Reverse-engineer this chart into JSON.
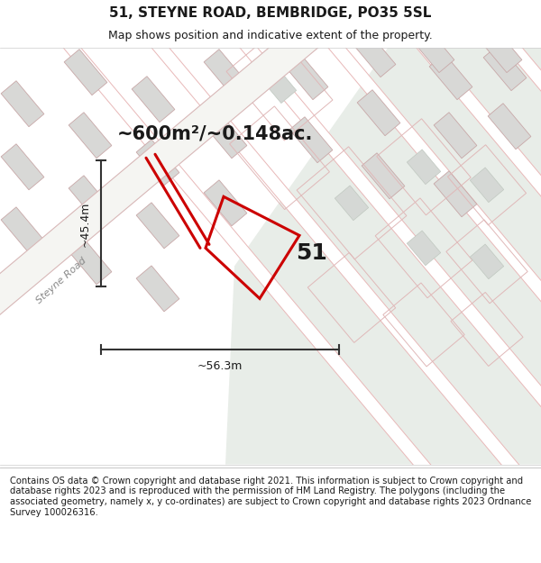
{
  "title": "51, STEYNE ROAD, BEMBRIDGE, PO35 5SL",
  "subtitle": "Map shows position and indicative extent of the property.",
  "area_label": "~600m²/~0.148ac.",
  "dim_width": "~56.3m",
  "dim_height": "~45.4m",
  "road_label": "Steyne Road",
  "plot_number": "51",
  "footer": "Contains OS data © Crown copyright and database right 2021. This information is subject to Crown copyright and database rights 2023 and is reproduced with the permission of HM Land Registry. The polygons (including the associated geometry, namely x, y co-ordinates) are subject to Crown copyright and database rights 2023 Ordnance Survey 100026316.",
  "bg_color": "#ffffff",
  "map_bg_left": "#f2f0ed",
  "map_bg_right": "#e8ede8",
  "road_fill": "#ffffff",
  "road_edge": "#e8b8b8",
  "bld_fill": "#d8d8d6",
  "bld_edge": "#c8a8a8",
  "plot_color": "#cc0000",
  "dim_color": "#333333",
  "text_color": "#1a1a1a",
  "road_label_color": "#888888",
  "title_fontsize": 11,
  "subtitle_fontsize": 9,
  "footer_fontsize": 7.2,
  "area_fontsize": 15,
  "dim_fontsize": 9,
  "plot_num_fontsize": 18,
  "road_label_fontsize": 8
}
